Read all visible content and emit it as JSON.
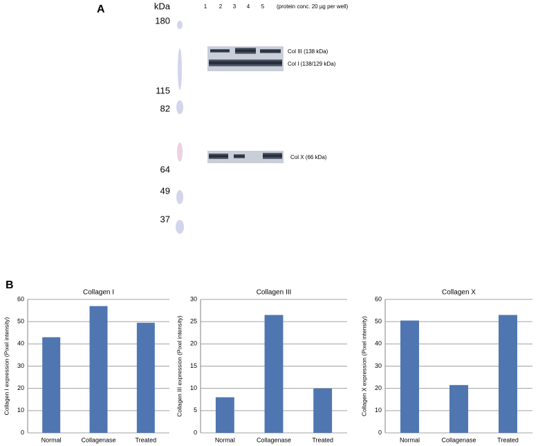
{
  "panel_labels": [
    "A",
    "B"
  ],
  "blot": {
    "unit": "kDa",
    "markers": [
      "180",
      "115",
      "82",
      "64",
      "49",
      "37"
    ],
    "lanes": [
      "1",
      "2",
      "3",
      "4",
      "5"
    ],
    "note": "(protein conc. 20 µg per well)",
    "bands": [
      "Col III (138 kDa)",
      "Col I (138/129 kDa)",
      "Col X (66 kDa)"
    ]
  },
  "chart_data": [
    {
      "type": "bar",
      "title": "Collagen I",
      "y_label": "Collagen I expression (Pixel intensity)",
      "categories": [
        "Normal",
        "Collagenase",
        "Treated"
      ],
      "values": [
        43,
        57,
        49.5
      ],
      "color": "#4f76b0",
      "ylim": [
        0,
        60
      ],
      "yticks": [
        0,
        10,
        20,
        30,
        40,
        50,
        60
      ],
      "grid": true
    },
    {
      "type": "bar",
      "title": "Collagen III",
      "y_label": "Collagen III expression (Pixel intensity)",
      "categories": [
        "Normal",
        "Collagenase",
        "Treated"
      ],
      "values": [
        8,
        26.5,
        10
      ],
      "color": "#4f76b0",
      "ylim": [
        0,
        30
      ],
      "yticks": [
        0,
        5,
        10,
        15,
        20,
        25,
        30
      ],
      "grid": true
    },
    {
      "type": "bar",
      "title": "Collagen X",
      "y_label": "Collagen X expression (Pixel intensity)",
      "categories": [
        "Normal",
        "Collagenase",
        "Treated"
      ],
      "values": [
        50.5,
        21.5,
        53
      ],
      "color": "#4f76b0",
      "ylim": [
        0,
        60
      ],
      "yticks": [
        0,
        10,
        20,
        30,
        40,
        50,
        60
      ],
      "grid": true
    }
  ]
}
